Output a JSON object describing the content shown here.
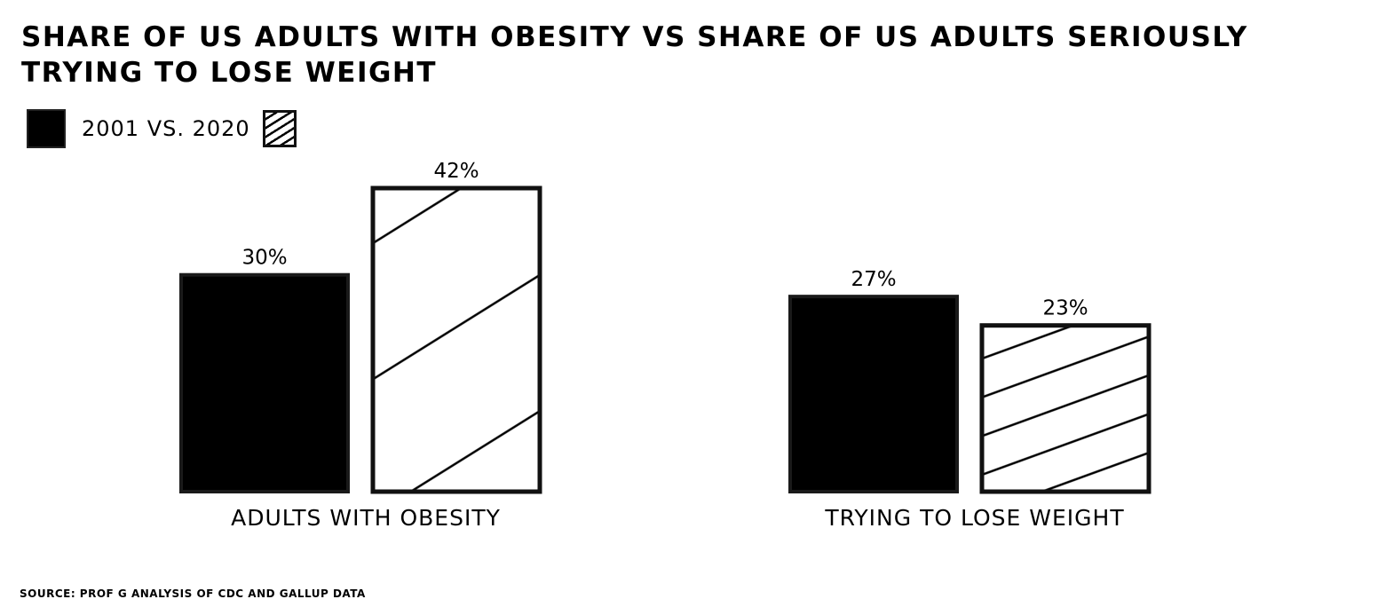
{
  "title": "SHARE OF US ADULTS WITH OBESITY VS SHARE OF US ADULTS SERIOUSLY TRYING TO LOSE WEIGHT",
  "legend": {
    "label": "2001 VS. 2020"
  },
  "source": "SOURCE: PROF G ANALYSIS OF CDC AND GALLUP DATA",
  "chart_data": {
    "type": "bar",
    "title": "SHARE OF US ADULTS WITH OBESITY VS SHARE OF US ADULTS SERIOUSLY TRYING TO LOSE WEIGHT",
    "categories": [
      "ADULTS WITH OBESITY",
      "TRYING TO LOSE WEIGHT"
    ],
    "series": [
      {
        "values": [
          30,
          27
        ],
        "labels": [
          "30%",
          "27%"
        ],
        "fill": "solid",
        "color": "#000000"
      },
      {
        "values": [
          42,
          23
        ],
        "labels": [
          "42%",
          "23%"
        ],
        "fill": "hatched",
        "color": "#000000"
      }
    ],
    "legend_label": "2001 VS. 2020",
    "ylim": [
      0,
      42
    ],
    "grid": false,
    "legend_position": "top-left"
  }
}
